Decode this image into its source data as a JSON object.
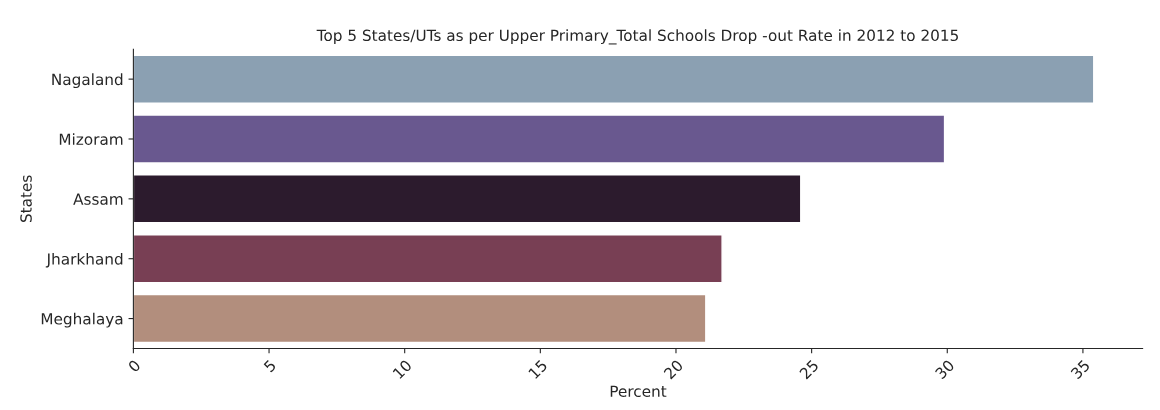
{
  "chart_data": {
    "type": "bar",
    "orientation": "horizontal",
    "title": "Top 5 States/UTs as per Upper Primary_Total Schools Drop -out Rate in 2012 to 2015",
    "xlabel": "Percent",
    "ylabel": "States",
    "categories": [
      "Nagaland",
      "Mizoram",
      "Assam",
      "Jharkhand",
      "Meghalaya"
    ],
    "values": [
      35.4,
      29.9,
      24.6,
      21.7,
      21.1
    ],
    "colors": [
      "#84a0b9",
      "#654f98",
      "#2e1830",
      "#823552",
      "#bb8b74"
    ],
    "xlim": [
      0,
      37.2
    ],
    "xticks": [
      0,
      5,
      10,
      15,
      20,
      25,
      30,
      35
    ],
    "grid": false,
    "legend": false
  }
}
